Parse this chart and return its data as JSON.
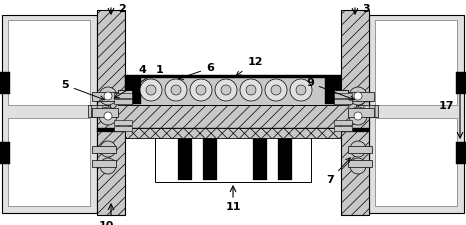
{
  "figsize": [
    4.66,
    2.25
  ],
  "dpi": 100,
  "bg_color": "#ffffff",
  "gray_light": "#c8c8c8",
  "gray_wall": "#e0e0e0",
  "black": "#000000",
  "white": "#ffffff",
  "hatch_gray": "#888888"
}
